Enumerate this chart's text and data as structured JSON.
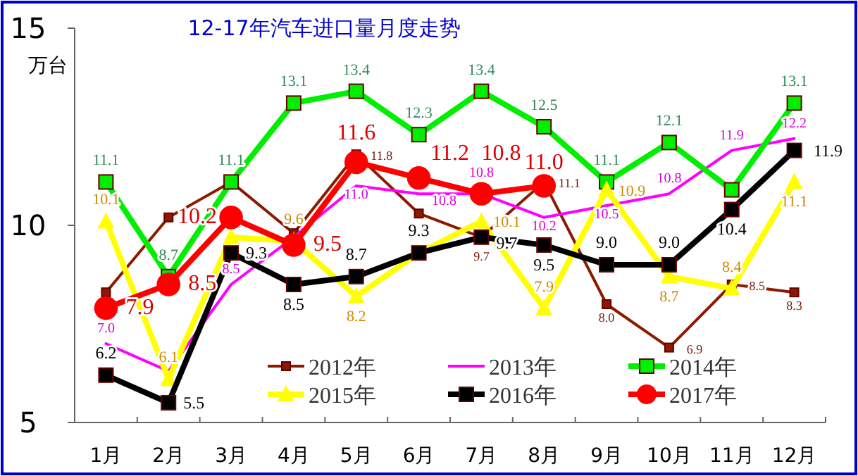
{
  "chart_data": {
    "type": "line",
    "title": "12-17年汽车进口量月度走势",
    "ylabel": "万台",
    "categories": [
      "1月",
      "2月",
      "3月",
      "4月",
      "5月",
      "6月",
      "7月",
      "8月",
      "9月",
      "10月",
      "11月",
      "12月"
    ],
    "ylim": [
      5,
      15
    ],
    "yticks": [
      5,
      10,
      15
    ],
    "grid": false,
    "legend": "bottom",
    "line_style": "solid",
    "series": [
      {
        "name": "2012年",
        "color": "#8b1a00",
        "marker": "square",
        "values": [
          8.3,
          10.2,
          11.1,
          9.8,
          11.8,
          10.3,
          9.7,
          11.1,
          8.0,
          6.9,
          8.5,
          8.3
        ],
        "value_labels": [
          null,
          null,
          null,
          null,
          "11.8",
          null,
          "9.7",
          "11.1",
          "8.0",
          "6.9",
          "8.5",
          "8.3"
        ]
      },
      {
        "name": "2013年",
        "color": "#ff00ff",
        "marker": "none",
        "values": [
          7.0,
          6.3,
          8.5,
          9.7,
          11.0,
          10.8,
          10.8,
          10.2,
          10.5,
          10.8,
          11.9,
          12.2
        ],
        "value_labels": [
          "7.0",
          null,
          "8.5",
          null,
          "11.0",
          "10.8",
          "10.8",
          "10.2",
          "10.5",
          "10.8",
          "11.9",
          "12.2"
        ]
      },
      {
        "name": "2014年",
        "color": "#00ee00",
        "marker": "square",
        "values": [
          11.1,
          8.7,
          11.1,
          13.1,
          13.4,
          12.3,
          13.4,
          12.5,
          11.1,
          12.1,
          10.9,
          13.1
        ],
        "value_labels": [
          "11.1",
          "8.7",
          "11.1",
          "13.1",
          "13.4",
          "12.3",
          "13.4",
          "12.5",
          "11.1",
          "12.1",
          null,
          "13.1"
        ]
      },
      {
        "name": "2015年",
        "color": "#ffff00",
        "marker": "triangle",
        "values": [
          10.1,
          6.1,
          9.7,
          9.6,
          8.2,
          9.3,
          10.1,
          7.9,
          10.9,
          8.7,
          8.4,
          11.1
        ],
        "value_labels": [
          "10.1",
          "6.1",
          null,
          "9.6",
          "8.2",
          null,
          "10.1",
          "7.9",
          "10.9",
          "8.7",
          "8.4",
          "11.1"
        ]
      },
      {
        "name": "2016年",
        "color": "#000000",
        "marker": "square",
        "values": [
          6.2,
          5.5,
          9.3,
          8.5,
          8.7,
          9.3,
          9.7,
          9.5,
          9.0,
          9.0,
          10.4,
          11.9
        ],
        "value_labels": [
          "6.2",
          "5.5",
          "9.3",
          "8.5",
          "8.7",
          "9.3",
          "9.7",
          "9.5",
          "9.0",
          "9.0",
          "10.4",
          "11.9"
        ]
      },
      {
        "name": "2017年",
        "color": "#ff0000",
        "marker": "circle",
        "values": [
          7.9,
          8.5,
          10.2,
          9.5,
          11.6,
          11.2,
          10.8,
          11.0,
          null,
          null,
          null,
          null
        ],
        "value_labels": [
          "7.9",
          "8.5",
          "10.2",
          "9.5",
          "11.6",
          "11.2",
          "10.8",
          "11.0",
          null,
          null,
          null,
          null
        ]
      }
    ]
  }
}
